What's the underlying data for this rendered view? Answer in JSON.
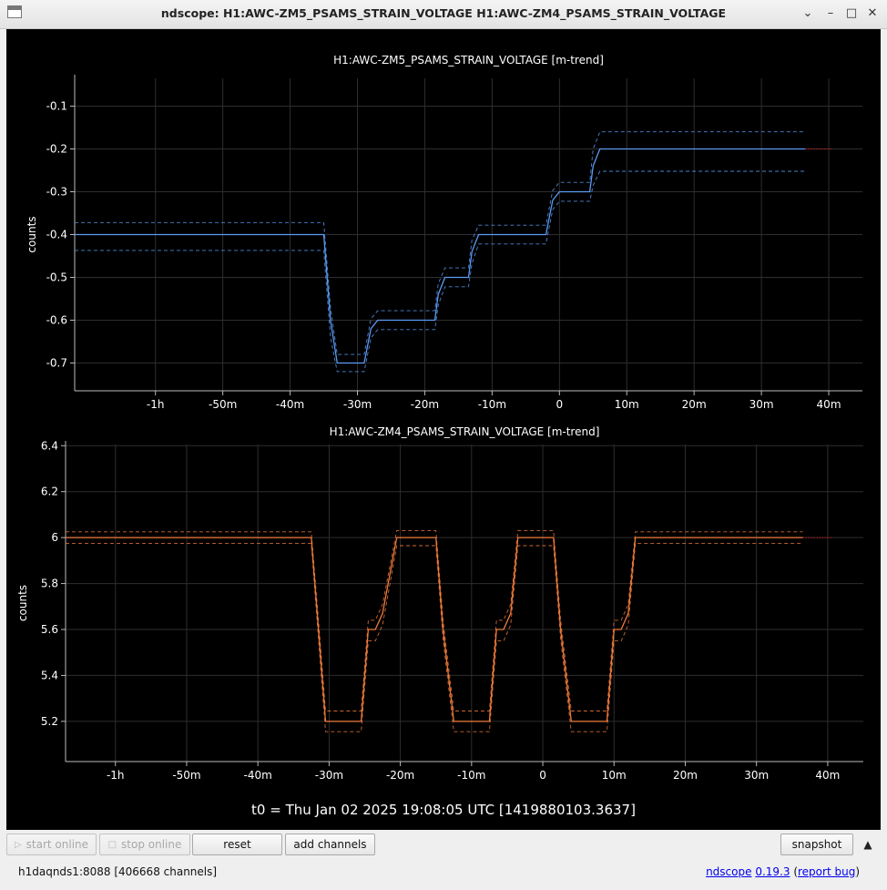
{
  "window": {
    "title": "ndscope: H1:AWC-ZM5_PSAMS_STRAIN_VOLTAGE H1:AWC-ZM4_PSAMS_STRAIN_VOLTAGE",
    "minimize": "–",
    "maximize": "□",
    "close": "✕"
  },
  "colors": {
    "background": "#000000",
    "axis": "#bbbbbb",
    "grid": "#2e2e2e",
    "text": "#ffffff",
    "zm5_line": "#5b9bf5",
    "zm4_line": "#f07a3a",
    "online_extension": "#cc2222"
  },
  "chart_data": [
    {
      "type": "line",
      "title": "H1:AWC-ZM5_PSAMS_STRAIN_VOLTAGE [m-trend]",
      "xlabel": "",
      "ylabel": "counts",
      "xlim": [
        -72,
        45
      ],
      "ylim": [
        -0.765,
        -0.035
      ],
      "xticks": [
        -60,
        -50,
        -40,
        -30,
        -20,
        -10,
        0,
        10,
        20,
        30,
        40
      ],
      "xtick_labels": [
        "-1h",
        "-50m",
        "-40m",
        "-30m",
        "-20m",
        "-10m",
        "0",
        "10m",
        "20m",
        "30m",
        "40m"
      ],
      "yticks": [
        -0.7,
        -0.6,
        -0.5,
        -0.4,
        -0.3,
        -0.2,
        -0.1
      ],
      "ytick_labels": [
        "-0.7",
        "-0.6",
        "-0.5",
        "-0.4",
        "-0.3",
        "-0.2",
        "-0.1"
      ],
      "grid": true,
      "series": [
        {
          "role": "mean",
          "color": "#5b9bf5",
          "x": [
            -72,
            -35,
            -34,
            -33,
            -29,
            -28,
            -27,
            -18.5,
            -18,
            -17,
            -13.5,
            -13,
            -12,
            -2,
            -1,
            0,
            4.5,
            5,
            6,
            36.5
          ],
          "y": [
            -0.4,
            -0.4,
            -0.6,
            -0.7,
            -0.7,
            -0.62,
            -0.6,
            -0.6,
            -0.54,
            -0.5,
            -0.5,
            -0.44,
            -0.4,
            -0.4,
            -0.32,
            -0.3,
            -0.3,
            -0.24,
            -0.2,
            -0.2
          ]
        },
        {
          "role": "max",
          "color": "#5b9bf5",
          "x": [
            -72,
            -35,
            -34,
            -33,
            -29,
            -28,
            -27,
            -18.5,
            -18,
            -17,
            -13.5,
            -13,
            -12,
            -2,
            -1,
            0,
            4.5,
            5,
            6,
            36.5
          ],
          "y": [
            -0.372,
            -0.372,
            -0.57,
            -0.68,
            -0.68,
            -0.597,
            -0.578,
            -0.578,
            -0.515,
            -0.478,
            -0.478,
            -0.413,
            -0.378,
            -0.378,
            -0.297,
            -0.278,
            -0.278,
            -0.2,
            -0.16,
            -0.16
          ]
        },
        {
          "role": "min",
          "color": "#5b9bf5",
          "x": [
            -72,
            -35,
            -34,
            -33,
            -29,
            -28,
            -27,
            -18.5,
            -18,
            -17,
            -13.5,
            -13,
            -12,
            -2,
            -1,
            0,
            4.5,
            5,
            6,
            36.5
          ],
          "y": [
            -0.437,
            -0.437,
            -0.64,
            -0.72,
            -0.72,
            -0.642,
            -0.622,
            -0.622,
            -0.565,
            -0.522,
            -0.522,
            -0.468,
            -0.422,
            -0.422,
            -0.342,
            -0.322,
            -0.322,
            -0.285,
            -0.252,
            -0.252
          ]
        },
        {
          "role": "online",
          "color": "#cc2222",
          "x": [
            36.5,
            40.5
          ],
          "y": [
            -0.2,
            -0.2
          ]
        }
      ]
    },
    {
      "type": "line",
      "title": "H1:AWC-ZM4_PSAMS_STRAIN_VOLTAGE [m-trend]",
      "xlabel": "",
      "ylabel": "counts",
      "xlim": [
        -67,
        45
      ],
      "ylim": [
        5.025,
        6.405
      ],
      "xticks": [
        -60,
        -50,
        -40,
        -30,
        -20,
        -10,
        0,
        10,
        20,
        30,
        40
      ],
      "xtick_labels": [
        "-1h",
        "-50m",
        "-40m",
        "-30m",
        "-20m",
        "-10m",
        "0",
        "10m",
        "20m",
        "30m",
        "40m"
      ],
      "yticks": [
        5.2,
        5.4,
        5.6,
        5.8,
        6,
        6.2,
        6.4
      ],
      "ytick_labels": [
        "5.2",
        "5.4",
        "5.6",
        "5.8",
        "6",
        "6.2",
        "6.4"
      ],
      "grid": true,
      "series": [
        {
          "role": "mean",
          "color": "#f07a3a",
          "x": [
            -67,
            -32.5,
            -31.5,
            -30.5,
            -25.5,
            -24.5,
            -23.5,
            -22.5,
            -20.5,
            -19,
            -15,
            -14,
            -12.5,
            -7.5,
            -6.5,
            -5.5,
            -4.5,
            -3.5,
            -2,
            1.5,
            2.5,
            4,
            9,
            10,
            11,
            12,
            13,
            36.5
          ],
          "y": [
            6.0,
            6.0,
            5.6,
            5.2,
            5.2,
            5.6,
            5.6,
            5.67,
            6.0,
            6.0,
            6.0,
            5.6,
            5.2,
            5.2,
            5.6,
            5.6,
            5.67,
            6.0,
            6.0,
            6.0,
            5.6,
            5.2,
            5.2,
            5.6,
            5.6,
            5.67,
            6.0,
            6.0
          ]
        },
        {
          "role": "max",
          "color": "#f07a3a",
          "x": [
            -67,
            -32.5,
            -31.5,
            -30.5,
            -25.5,
            -24.5,
            -23.5,
            -22.5,
            -20.5,
            -19,
            -15,
            -14,
            -12.5,
            -7.5,
            -6.5,
            -5.5,
            -4.5,
            -3.5,
            -2,
            1.5,
            2.5,
            4,
            9,
            10,
            11,
            12,
            13,
            36.5
          ],
          "y": [
            6.025,
            6.025,
            5.64,
            5.245,
            5.245,
            5.64,
            5.64,
            5.71,
            6.03,
            6.03,
            6.03,
            5.64,
            5.245,
            5.245,
            5.64,
            5.64,
            5.71,
            6.03,
            6.03,
            6.03,
            5.64,
            5.245,
            5.245,
            5.64,
            5.64,
            5.71,
            6.025,
            6.025
          ]
        },
        {
          "role": "min",
          "color": "#f07a3a",
          "x": [
            -67,
            -32.5,
            -31.5,
            -30.5,
            -25.5,
            -24.5,
            -23.5,
            -22.5,
            -20.5,
            -19,
            -15,
            -14,
            -12.5,
            -7.5,
            -6.5,
            -5.5,
            -4.5,
            -3.5,
            -2,
            1.5,
            2.5,
            4,
            9,
            10,
            11,
            12,
            13,
            36.5
          ],
          "y": [
            5.975,
            5.975,
            5.56,
            5.155,
            5.155,
            5.55,
            5.55,
            5.62,
            5.965,
            5.965,
            5.965,
            5.56,
            5.155,
            5.155,
            5.55,
            5.55,
            5.62,
            5.965,
            5.965,
            5.965,
            5.56,
            5.155,
            5.155,
            5.55,
            5.55,
            5.62,
            5.975,
            5.975
          ]
        },
        {
          "role": "online",
          "color": "#cc2222",
          "x": [
            36.5,
            40.5
          ],
          "y": [
            6.0,
            6.0
          ]
        }
      ]
    }
  ],
  "t0_label": "t0 = Thu Jan 02 2025 19:08:05 UTC [1419880103.3637]",
  "buttons": {
    "start_online": "start online",
    "stop_online": "stop online",
    "reset": "reset",
    "add_channels": "add channels",
    "snapshot": "snapshot",
    "expand": "▲"
  },
  "status": {
    "server": "h1daqnds1:8088  [406668 channels]",
    "app_name": "ndscope",
    "version": "0.19.3",
    "open_paren": " (",
    "report_bug": "report bug",
    "close_paren": ")"
  }
}
